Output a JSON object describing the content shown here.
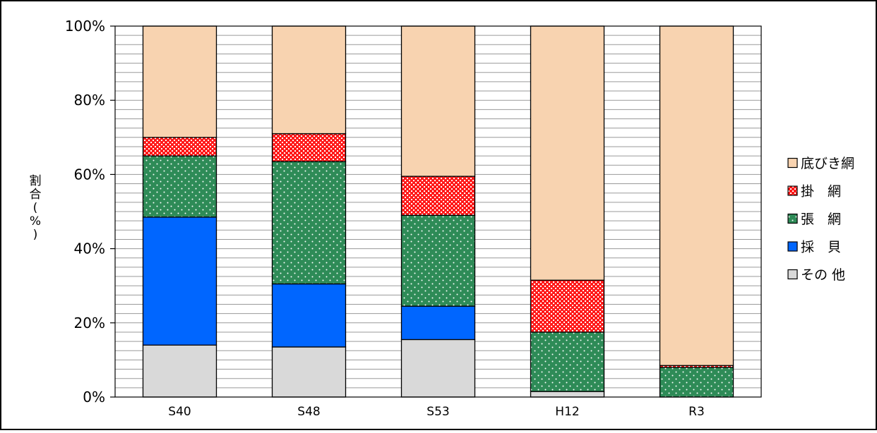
{
  "chart_data": {
    "type": "bar",
    "stacked": true,
    "percent_stacked": true,
    "categories": [
      "S40",
      "S48",
      "S53",
      "H12",
      "R3"
    ],
    "ylabel": "割合(%)",
    "xlabel": "",
    "ylim": [
      0,
      100
    ],
    "y_ticks": [
      "0%",
      "20%",
      "40%",
      "60%",
      "80%",
      "100%"
    ],
    "grid": true,
    "legend_position": "right",
    "series": [
      {
        "name": "その 他",
        "color": "#d9d9d9",
        "pattern": "none",
        "values": [
          14,
          13.5,
          15.5,
          1.5,
          0
        ]
      },
      {
        "name": "採　貝",
        "color": "#0066ff",
        "pattern": "none",
        "values": [
          34.5,
          17,
          9,
          0,
          0
        ]
      },
      {
        "name": "張　網",
        "color": "#2e8b57",
        "pattern": "dots",
        "values": [
          16.5,
          33,
          24.5,
          16,
          8
        ]
      },
      {
        "name": "掛　網",
        "color": "#ff1a1a",
        "pattern": "checks",
        "values": [
          5,
          7.5,
          10.5,
          14,
          0.5
        ]
      },
      {
        "name": "底びき網",
        "color": "#f8d3b0",
        "pattern": "none",
        "values": [
          30,
          29,
          40.5,
          68.5,
          91.5
        ]
      }
    ]
  }
}
